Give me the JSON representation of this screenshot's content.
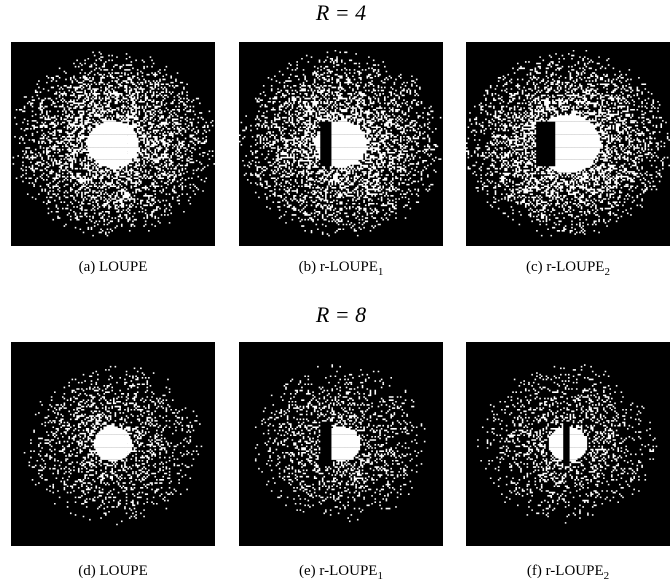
{
  "rows": [
    {
      "title": "R = 4",
      "panels": [
        {
          "caption": "(a) LOUPE",
          "subscript": null
        },
        {
          "caption": "(b) r-LOUPE",
          "subscript": "1"
        },
        {
          "caption": "(c) r-LOUPE",
          "subscript": "2"
        }
      ]
    },
    {
      "title": "R = 8",
      "panels": [
        {
          "caption": "(d) LOUPE",
          "subscript": null
        },
        {
          "caption": "(e) r-LOUPE",
          "subscript": "1"
        },
        {
          "caption": "(f) r-LOUPE",
          "subscript": "2"
        }
      ]
    }
  ]
}
